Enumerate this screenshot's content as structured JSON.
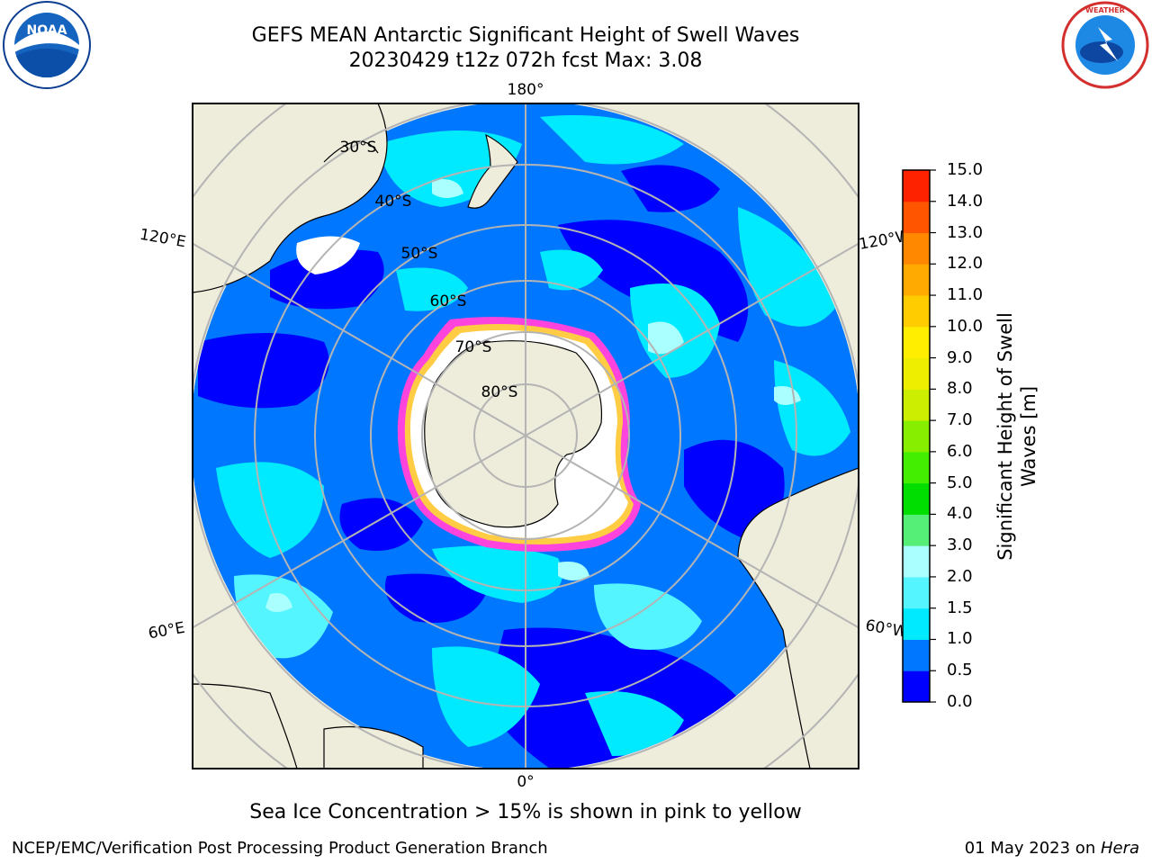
{
  "title": {
    "line1": "GEFS MEAN Antarctic Significant Height of Swell Waves",
    "line2": "20230429 t12z 072h fcst   Max: 3.08"
  },
  "logos": {
    "noaa": {
      "text": "NOAA",
      "ring_text": "NATIONAL OCEANIC AND ATMOSPHERIC ADMINISTRATION · U.S. DEPARTMENT OF COMMERCE"
    },
    "nws": {
      "ring_text": "NATIONAL WEATHER SERVICE"
    }
  },
  "map": {
    "projection": "south-polar-stereographic",
    "longitude_labels": {
      "top": "180°",
      "bottom": "0°",
      "left_upper": "120°E",
      "left_lower": "60°E",
      "right_upper": "120°W",
      "right_lower": "60°W"
    },
    "latitude_labels": [
      "30°S",
      "40°S",
      "50°S",
      "60°S",
      "70°S",
      "80°S"
    ],
    "colors": {
      "land": "#eeecdb",
      "ice_shelf": "#ffffff",
      "graticule": "#b4b4b4",
      "sea_ice_edge": "#ff44dd",
      "sea_ice_fringe": "#ffcc44"
    }
  },
  "colorbar": {
    "label_line1": "Significant Height of Swell",
    "label_line2": "Waves [m]",
    "ticks": [
      "15.0",
      "14.0",
      "13.0",
      "12.0",
      "11.0",
      "10.0",
      "9.0",
      "8.0",
      "7.0",
      "6.0",
      "5.0",
      "4.0",
      "3.0",
      "2.0",
      "1.5",
      "1.0",
      "0.5",
      "0.0"
    ],
    "colors": [
      "#0000ff",
      "#0077ff",
      "#00eaff",
      "#55f5ff",
      "#aaffff",
      "#55ee77",
      "#00dd00",
      "#44ee00",
      "#88ee00",
      "#ccee00",
      "#eeee00",
      "#ffee00",
      "#ffcc00",
      "#ffaa00",
      "#ff8800",
      "#ff5500",
      "#ff2200"
    ]
  },
  "footer": {
    "ice_note": "Sea Ice Concentration > 15% is shown in pink to yellow",
    "credit": "NCEP/EMC/Verification Post Processing Product Generation Branch",
    "date": "01 May 2023 on ",
    "host": "Hera"
  }
}
